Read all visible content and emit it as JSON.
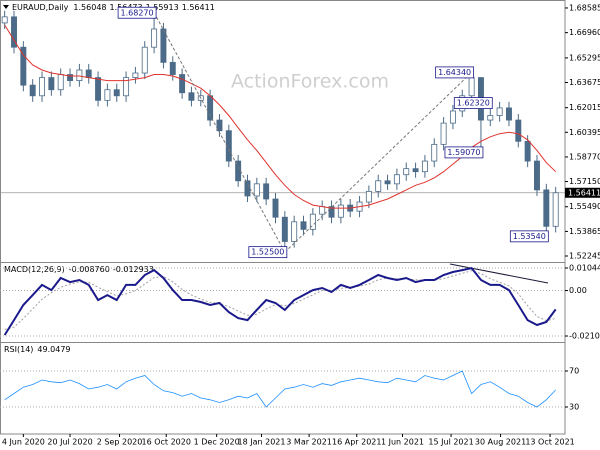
{
  "chart_data": [
    {
      "type": "candlestick",
      "title": "EURAUD,Daily",
      "header_ohlc": [
        1.56048,
        1.56473,
        1.55913,
        1.56411
      ],
      "watermark": "ActionForex.com",
      "candle_color": "#4b6b88",
      "xlim": [
        -0.5,
        60
      ],
      "xticks": [
        {
          "value": 2,
          "label": "4 Jun 2020"
        },
        {
          "value": 7,
          "label": "20 Jul 2020"
        },
        {
          "value": 12.3,
          "label": "2 Sep 2020"
        },
        {
          "value": 17.3,
          "label": "16 Oct 2020"
        },
        {
          "value": 22.7,
          "label": "1 Dec 2020"
        },
        {
          "value": 27.5,
          "label": "18 Jan 2021"
        },
        {
          "value": 32.6,
          "label": "3 Mar 2021"
        },
        {
          "value": 37.7,
          "label": "16 Apr 2021"
        },
        {
          "value": 42.6,
          "label": "1 Jun 2021"
        },
        {
          "value": 47.8,
          "label": "15 Jul 2021"
        },
        {
          "value": 53.1,
          "label": "30 Aug 2021"
        },
        {
          "value": 58.4,
          "label": "13 Oct 2021"
        }
      ],
      "ylim": [
        1.5185,
        1.6911
      ],
      "yticks": [
        1.68585,
        {
          "value": 1.6696,
          "label": "1.66960"
        },
        1.65295,
        1.63675,
        1.62015,
        1.60395,
        {
          "value": 1.5877,
          "label": "1.58770"
        },
        {
          "value": 1.5715,
          "label": "1.57150"
        },
        {
          "value": 1.5549,
          "label": "1.55490"
        },
        1.53865,
        1.52245
      ],
      "open": [
        1.676,
        1.68,
        1.66,
        1.635,
        1.628,
        1.64,
        1.632,
        1.642,
        1.638,
        1.645,
        1.64,
        1.625,
        1.632,
        1.628,
        1.64,
        1.643,
        1.66,
        1.672,
        1.65,
        1.642,
        1.63,
        1.625,
        1.628,
        1.612,
        1.605,
        1.585,
        1.572,
        1.562,
        1.57,
        1.56,
        1.548,
        1.532,
        1.545,
        1.54,
        1.55,
        1.555,
        1.548,
        1.556,
        1.552,
        1.558,
        1.565,
        1.572,
        1.57,
        1.576,
        1.58,
        1.578,
        1.585,
        1.596,
        1.61,
        1.618,
        1.628,
        1.64,
        1.612,
        1.615,
        1.62,
        1.612,
        1.598,
        1.585,
        1.566,
        1.542
      ],
      "high": [
        1.684,
        1.684,
        1.664,
        1.639,
        1.644,
        1.644,
        1.646,
        1.646,
        1.649,
        1.649,
        1.644,
        1.636,
        1.636,
        1.644,
        1.647,
        1.664,
        1.6827,
        1.676,
        1.654,
        1.646,
        1.634,
        1.632,
        1.632,
        1.616,
        1.609,
        1.589,
        1.576,
        1.574,
        1.574,
        1.564,
        1.552,
        1.549,
        1.549,
        1.554,
        1.559,
        1.559,
        1.56,
        1.56,
        1.562,
        1.569,
        1.576,
        1.576,
        1.58,
        1.584,
        1.584,
        1.589,
        1.6,
        1.614,
        1.622,
        1.632,
        1.6434,
        1.64,
        1.6232,
        1.624,
        1.624,
        1.616,
        1.602,
        1.589,
        1.57,
        1.568
      ],
      "low": [
        1.672,
        1.656,
        1.631,
        1.624,
        1.624,
        1.628,
        1.628,
        1.634,
        1.634,
        1.636,
        1.621,
        1.621,
        1.624,
        1.624,
        1.636,
        1.639,
        1.656,
        1.646,
        1.638,
        1.626,
        1.621,
        1.621,
        1.608,
        1.601,
        1.581,
        1.568,
        1.558,
        1.558,
        1.556,
        1.544,
        1.525,
        1.528,
        1.536,
        1.536,
        1.546,
        1.544,
        1.544,
        1.548,
        1.548,
        1.554,
        1.561,
        1.566,
        1.566,
        1.572,
        1.574,
        1.574,
        1.581,
        1.592,
        1.606,
        1.614,
        1.624,
        1.5907,
        1.608,
        1.611,
        1.608,
        1.594,
        1.581,
        1.562,
        1.5354,
        1.538
      ],
      "close": [
        1.68,
        1.66,
        1.635,
        1.628,
        1.64,
        1.632,
        1.642,
        1.638,
        1.645,
        1.64,
        1.625,
        1.632,
        1.628,
        1.64,
        1.643,
        1.66,
        1.672,
        1.65,
        1.642,
        1.63,
        1.625,
        1.628,
        1.612,
        1.605,
        1.585,
        1.572,
        1.562,
        1.57,
        1.56,
        1.548,
        1.532,
        1.545,
        1.54,
        1.55,
        1.555,
        1.548,
        1.556,
        1.552,
        1.558,
        1.565,
        1.572,
        1.57,
        1.576,
        1.58,
        1.578,
        1.585,
        1.596,
        1.61,
        1.618,
        1.628,
        1.64,
        1.612,
        1.615,
        1.62,
        1.612,
        1.598,
        1.585,
        1.566,
        1.542,
        1.56411
      ],
      "ma": {
        "color": "#e0332e",
        "values": [
          1.6746,
          1.6647,
          1.6549,
          1.6483,
          1.645,
          1.643,
          1.642,
          1.641,
          1.641,
          1.64,
          1.639,
          1.638,
          1.638,
          1.638,
          1.639,
          1.64,
          1.642,
          1.642,
          1.641,
          1.639,
          1.636,
          1.633,
          1.628,
          1.622,
          1.615,
          1.607,
          1.599,
          1.592,
          1.584,
          1.576,
          1.569,
          1.563,
          1.559,
          1.556,
          1.555,
          1.554,
          1.554,
          1.554,
          1.555,
          1.556,
          1.558,
          1.56,
          1.563,
          1.566,
          1.569,
          1.571,
          1.574,
          1.578,
          1.583,
          1.588,
          1.594,
          1.598,
          1.601,
          1.603,
          1.604,
          1.603,
          1.599,
          1.592,
          1.584,
          1.578
        ]
      },
      "annotations": [
        {
          "x": 16,
          "value": 1.6827,
          "label": "1.68270"
        },
        {
          "x": 30,
          "value": 1.525,
          "label": "1.52500"
        },
        {
          "x": 50,
          "value": 1.6434,
          "label": "1.64340"
        },
        {
          "x": 52,
          "value": 1.6232,
          "label": "1.62320"
        },
        {
          "x": 51,
          "value": 1.5907,
          "label": "1.59070"
        },
        {
          "x": 58,
          "value": 1.5354,
          "label": "1.53540"
        }
      ]
    },
    {
      "type": "line",
      "title": "MACD(12,26,9)",
      "header_values": [
        {
          "value": -0.00876,
          "label": "-0.008760"
        },
        -0.012933
      ],
      "ylim": [
        -0.0234,
        0.01277
      ],
      "yticks": [
        0.010449,
        {
          "value": 0,
          "label": "0.00"
        },
        -0.021083
      ],
      "macd": {
        "color": "#1a1a8c",
        "values": [
          -0.0206,
          -0.0137,
          -0.0067,
          -0.0021,
          0.0026,
          0.0002,
          0.0058,
          0.0039,
          0.0049,
          0.0026,
          -0.0044,
          -0.0021,
          -0.0044,
          0.0026,
          0.0026,
          0.0072,
          0.0095,
          0.0058,
          0.0002,
          -0.0044,
          -0.0044,
          -0.0053,
          -0.0067,
          -0.0058,
          -0.01,
          -0.0128,
          -0.0137,
          -0.009,
          -0.0044,
          -0.0058,
          -0.009,
          -0.0044,
          -0.0021,
          0.0002,
          0.0012,
          -0.0007,
          0.0026,
          0.0012,
          0.0026,
          0.0049,
          0.0072,
          0.0058,
          0.0049,
          0.0058,
          0.0039,
          0.0049,
          0.0049,
          0.0072,
          0.0086,
          0.0095,
          0.0104,
          0.0049,
          0.0026,
          0.0026,
          0.0002,
          -0.0067,
          -0.0137,
          -0.016,
          -0.0146,
          -0.00876
        ]
      },
      "signal": {
        "color": "#a0a0a0",
        "values": [
          -0.018,
          -0.017,
          -0.013,
          -0.0085,
          -0.004,
          -0.001,
          0.0015,
          0.003,
          0.004,
          0.0038,
          0.0015,
          -0.0005,
          -0.0025,
          -0.0015,
          0.0,
          0.003,
          0.006,
          0.0065,
          0.004,
          0.0005,
          -0.002,
          -0.004,
          -0.0055,
          -0.006,
          -0.0075,
          -0.0095,
          -0.0115,
          -0.011,
          -0.0085,
          -0.0065,
          -0.007,
          -0.006,
          -0.004,
          -0.002,
          0.0,
          0.0,
          0.001,
          0.0015,
          0.002,
          0.003,
          0.005,
          0.0058,
          0.0055,
          0.0055,
          0.005,
          0.0048,
          0.0048,
          0.0055,
          0.0068,
          0.008,
          0.0092,
          0.0078,
          0.0055,
          0.0038,
          0.0022,
          -0.0015,
          -0.007,
          -0.012,
          -0.014,
          -0.012933
        ]
      }
    },
    {
      "type": "line",
      "title": "RSI(14)",
      "header_value": 49.0479,
      "color": "#1e90ff",
      "ylim": [
        0,
        100
      ],
      "yticks": [
        70,
        30
      ],
      "values": [
        38,
        45,
        52,
        55,
        60,
        58,
        57,
        60,
        56,
        50,
        52,
        55,
        50,
        58,
        62,
        65,
        55,
        48,
        46,
        42,
        45,
        40,
        38,
        35,
        38,
        42,
        40,
        45,
        30,
        40,
        50,
        52,
        55,
        52,
        56,
        54,
        58,
        60,
        62,
        60,
        58,
        57,
        62,
        60,
        58,
        65,
        62,
        60,
        65,
        70,
        45,
        55,
        58,
        52,
        45,
        42,
        35,
        30,
        38,
        49.0479
      ]
    }
  ]
}
